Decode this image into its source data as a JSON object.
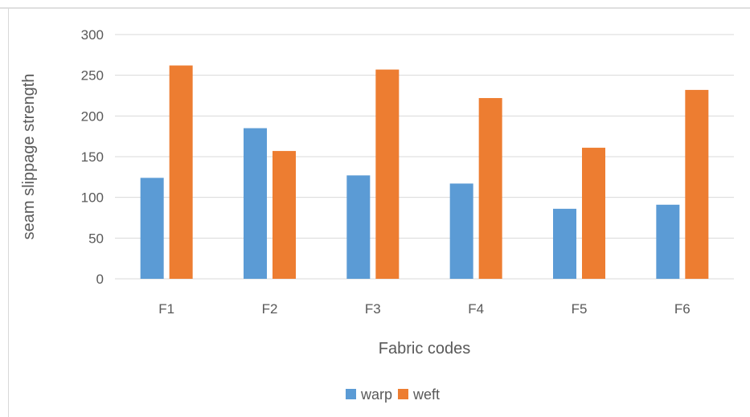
{
  "chart_data": {
    "type": "bar",
    "title": "",
    "xlabel": "Fabric codes",
    "ylabel": "seam slippage strength",
    "categories": [
      "F1",
      "F2",
      "F3",
      "F4",
      "F5",
      "F6"
    ],
    "series": [
      {
        "name": "warp",
        "color": "#5b9bd5",
        "values": [
          124,
          185,
          127,
          117,
          86,
          91
        ]
      },
      {
        "name": "weft",
        "color": "#ed7d31",
        "values": [
          262,
          157,
          257,
          222,
          161,
          232
        ]
      }
    ],
    "ylim": [
      0,
      300
    ],
    "yticks": [
      "0",
      "50",
      "100",
      "150",
      "200",
      "250",
      "300"
    ],
    "grid": true,
    "legend_position": "bottom"
  }
}
